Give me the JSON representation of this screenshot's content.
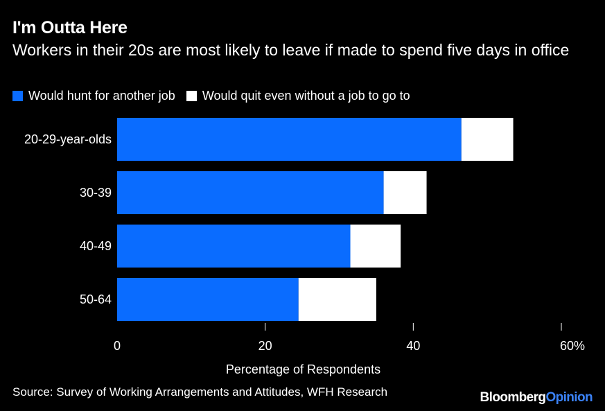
{
  "header": {
    "title": "I'm Outta Here",
    "subtitle": "Workers in their 20s are most likely to leave if made to spend five days in office"
  },
  "footer": {
    "source": "Source: Survey of Working Arrangements and Attitudes, WFH Research",
    "brand_main": "Bloomberg",
    "brand_accent": "Opinion"
  },
  "chart_data": {
    "type": "bar",
    "orientation": "horizontal",
    "stacked": true,
    "categories": [
      "20-29-year-olds",
      "30-39",
      "40-49",
      "50-64"
    ],
    "series": [
      {
        "name": "Would hunt for another job",
        "color": "#0a6cff",
        "values": [
          46.5,
          36,
          31.5,
          24.5
        ]
      },
      {
        "name": "Would quit even without a job to go to",
        "color": "#ffffff",
        "values": [
          7,
          5.8,
          6.8,
          10.5
        ]
      }
    ],
    "xlabel": "Percentage of Respondents",
    "xlim": [
      0,
      60
    ],
    "xticks": [
      {
        "value": 0,
        "label": "0"
      },
      {
        "value": 20,
        "label": "20"
      },
      {
        "value": 40,
        "label": "40"
      },
      {
        "value": 60,
        "label": "60%"
      }
    ],
    "grid": false,
    "legend_position": "top-left"
  }
}
